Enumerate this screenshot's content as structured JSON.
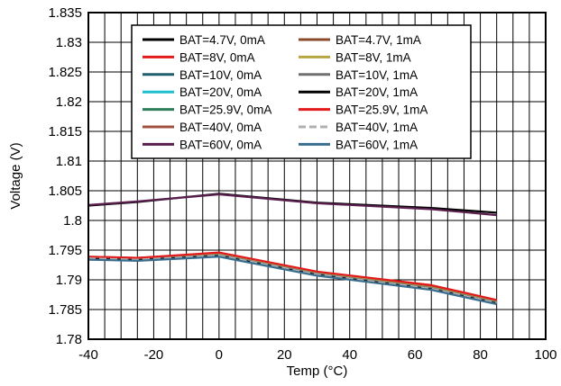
{
  "chart_data": {
    "type": "line",
    "title": "",
    "xlabel": "Temp (°C)",
    "ylabel": "Voltage (V)",
    "xlim": [
      -40,
      100
    ],
    "ylim": [
      1.78,
      1.835
    ],
    "xticks": [
      -40,
      -20,
      0,
      20,
      40,
      60,
      80,
      100
    ],
    "xtick_labels": [
      "-40",
      "-20",
      "0",
      "20",
      "40",
      "60",
      "80",
      "100"
    ],
    "yticks": [
      1.78,
      1.785,
      1.79,
      1.795,
      1.8,
      1.805,
      1.81,
      1.815,
      1.82,
      1.825,
      1.83,
      1.835
    ],
    "ytick_labels": [
      "1.78",
      "1.785",
      "1.79",
      "1.795",
      "1.8",
      "1.805",
      "1.81",
      "1.815",
      "1.82",
      "1.825",
      "1.83",
      "1.835"
    ],
    "grid": true,
    "legend_position": "top-center",
    "series": [
      {
        "name": "BAT=4.7V, 0mA",
        "color": "#000000",
        "dash": "",
        "x": [
          -40,
          -25,
          0,
          30,
          65,
          85
        ],
        "y": [
          1.8025,
          1.8031,
          1.8045,
          1.803,
          1.8021,
          1.8013
        ]
      },
      {
        "name": "BAT=8V, 0mA",
        "color": "#e31a1c",
        "dash": "",
        "x": [
          -40,
          -25,
          0,
          30,
          65,
          85
        ],
        "y": [
          1.7938,
          1.7935,
          1.7942,
          1.791,
          1.7886,
          1.7862
        ]
      },
      {
        "name": "BAT=10V, 0mA",
        "color": "#1f5f6e",
        "dash": "",
        "x": [
          -40,
          -25,
          0,
          30,
          65,
          85
        ],
        "y": [
          1.7935,
          1.7933,
          1.794,
          1.7908,
          1.7884,
          1.786
        ]
      },
      {
        "name": "BAT=20V, 0mA",
        "color": "#1fbfcf",
        "dash": "",
        "x": [
          -40,
          -25,
          0,
          30,
          65,
          85
        ],
        "y": [
          1.7936,
          1.7934,
          1.7941,
          1.7909,
          1.7885,
          1.7861
        ]
      },
      {
        "name": "BAT=25.9V, 0mA",
        "color": "#2e7d5b",
        "dash": "",
        "x": [
          -40,
          -25,
          0,
          30,
          65,
          85
        ],
        "y": [
          1.7937,
          1.7935,
          1.7942,
          1.791,
          1.7885,
          1.7862
        ]
      },
      {
        "name": "BAT=40V, 0mA",
        "color": "#a0503c",
        "dash": "",
        "x": [
          -40,
          -25,
          0,
          30,
          65,
          85
        ],
        "y": [
          1.7938,
          1.7936,
          1.7944,
          1.7912,
          1.7888,
          1.7864
        ]
      },
      {
        "name": "BAT=60V, 0mA",
        "color": "#5b1f4f",
        "dash": "",
        "x": [
          -40,
          -25,
          0,
          30,
          65,
          85
        ],
        "y": [
          1.8026,
          1.8032,
          1.8044,
          1.8029,
          1.8019,
          1.8009
        ]
      },
      {
        "name": "BAT=4.7V, 1mA",
        "color": "#8b4a2b",
        "dash": "",
        "x": [
          -40,
          -25,
          0,
          30,
          65,
          85
        ],
        "y": [
          1.7939,
          1.7937,
          1.7945,
          1.7913,
          1.789,
          1.7866
        ]
      },
      {
        "name": "BAT=8V, 1mA",
        "color": "#b5a642",
        "dash": "",
        "x": [
          -40,
          -25,
          0,
          30,
          65,
          85
        ],
        "y": [
          1.7937,
          1.7935,
          1.7943,
          1.7911,
          1.7887,
          1.7863
        ]
      },
      {
        "name": "BAT=10V, 1mA",
        "color": "#707070",
        "dash": "",
        "x": [
          -40,
          -25,
          0,
          30,
          65,
          85
        ],
        "y": [
          1.7936,
          1.7934,
          1.7942,
          1.791,
          1.7886,
          1.7862
        ]
      },
      {
        "name": "BAT=20V, 1mA",
        "color": "#000000",
        "dash": "",
        "x": [
          -40,
          -25,
          0,
          30,
          65,
          85
        ],
        "y": [
          1.7935,
          1.7933,
          1.794,
          1.7908,
          1.7884,
          1.786
        ]
      },
      {
        "name": "BAT=25.9V, 1mA",
        "color": "#e31a1c",
        "dash": "",
        "x": [
          -40,
          -25,
          0,
          30,
          65,
          85
        ],
        "y": [
          1.7939,
          1.7937,
          1.7946,
          1.7914,
          1.7891,
          1.7866
        ]
      },
      {
        "name": "BAT=40V, 1mA",
        "color": "#b0b0b0",
        "dash": "8,4",
        "x": [
          -40,
          -25,
          0,
          30,
          65,
          85
        ],
        "y": [
          1.7936,
          1.7934,
          1.7941,
          1.7909,
          1.7885,
          1.7861
        ]
      },
      {
        "name": "BAT=60V, 1mA",
        "color": "#3a6e8f",
        "dash": "",
        "x": [
          -40,
          -25,
          0,
          30,
          65,
          85
        ],
        "y": [
          1.7934,
          1.7932,
          1.7939,
          1.7907,
          1.7883,
          1.7859
        ]
      }
    ]
  }
}
